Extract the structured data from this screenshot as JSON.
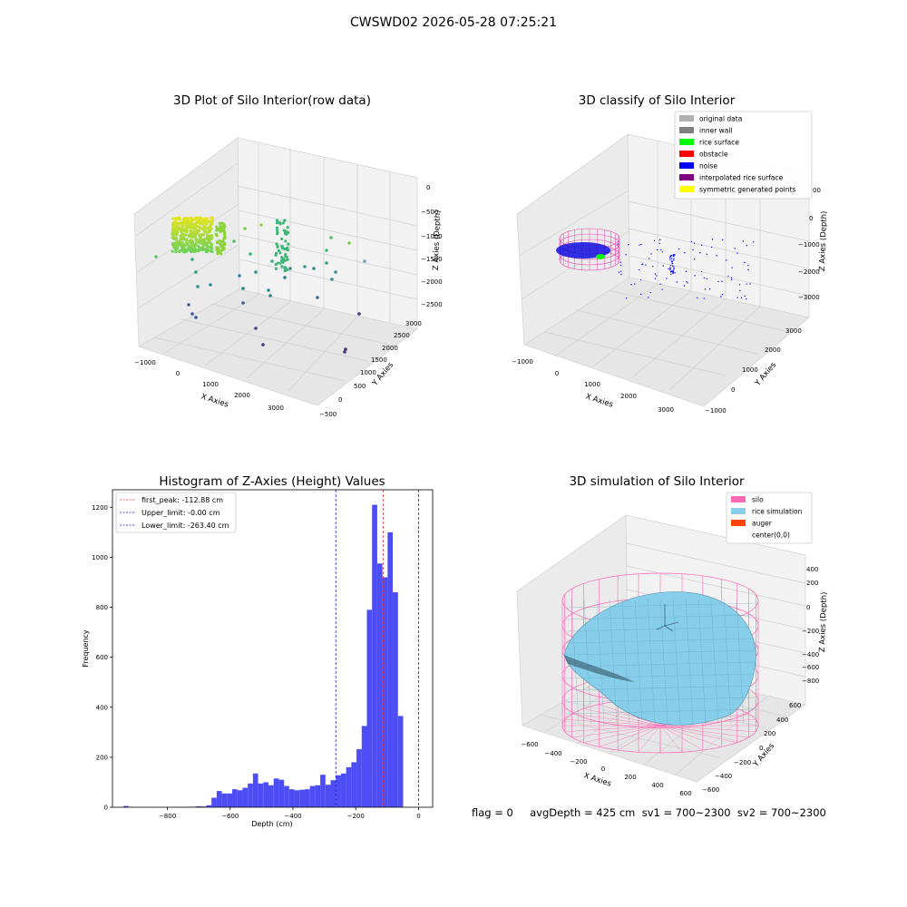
{
  "suptitle": "CWSWD02 2026-05-28 07:25:21",
  "colors": {
    "hist_bar": "#4d4df5",
    "first_peak": "#e03030",
    "limits": "#2020cc",
    "silo": "#ff69b4",
    "rice_simulation": "#87ceeb",
    "auger": "#ff4500",
    "inner_wall": "#808080",
    "rice_surface": "#00ff00",
    "obstacle": "#ff0000",
    "noise": "#0000ff",
    "interpolated": "#800080",
    "symmetric": "#ffff00",
    "original": "#b0b0b0"
  },
  "panel1": {
    "title": "3D Plot of Silo Interior(row data)",
    "xlabel": "X Axies",
    "ylabel": "Y Axies",
    "zlabel": "Z Axies (Depth)",
    "xticks": [
      "−1000",
      "0",
      "1000",
      "2000",
      "3000"
    ],
    "yticks": [
      "−500",
      "0",
      "500",
      "1000",
      "1500",
      "2000",
      "2500",
      "3000"
    ],
    "zticks": [
      "0",
      "−500",
      "−1000",
      "−1500",
      "−2000",
      "−2500"
    ]
  },
  "panel2": {
    "title": "3D classify of Silo Interior",
    "xlabel": "X Axies",
    "ylabel": "Y Axies",
    "zlabel": "Z Axies (Depth)",
    "xticks": [
      "−1000",
      "0",
      "1000",
      "2000",
      "3000"
    ],
    "yticks": [
      "−1000",
      "0",
      "1000",
      "2000",
      "3000"
    ],
    "zticks": [
      "0",
      "−1000",
      "−2000",
      "−3000"
    ],
    "ztick_top_partial": "00",
    "legend": [
      {
        "label": "original data",
        "color": "#b0b0b0"
      },
      {
        "label": "inner wall",
        "color": "#808080"
      },
      {
        "label": "rice surface",
        "color": "#00ff00"
      },
      {
        "label": "obstacle",
        "color": "#ff0000"
      },
      {
        "label": "noise",
        "color": "#0000ff"
      },
      {
        "label": "interpolated rice surface",
        "color": "#800080"
      },
      {
        "label": "symmetric generated points",
        "color": "#ffff00"
      }
    ]
  },
  "panel4": {
    "title": "3D simulation of Silo Interior",
    "xlabel": "X Axies",
    "ylabel": "Y Axies",
    "zlabel": "Z Axies (Depth)",
    "xticks": [
      "−600",
      "−400",
      "−200",
      "0",
      "200",
      "400",
      "600"
    ],
    "yticks": [
      "−600",
      "−400",
      "−200",
      "0",
      "200",
      "400",
      "600"
    ],
    "zticks": [
      "400",
      "200",
      "0",
      "−200",
      "−400",
      "−600",
      "−800"
    ],
    "legend": [
      {
        "label": "silo",
        "color": "#ff69b4"
      },
      {
        "label": "rice simulation",
        "color": "#87ceeb"
      },
      {
        "label": "auger",
        "color": "#ff4500"
      },
      {
        "label": "center(0,0)",
        "color": ""
      }
    ]
  },
  "footer": "flag = 0     avgDepth = 425 cm  sv1 = 700~2300  sv2 = 700~2300",
  "chart_data": {
    "type": "bar",
    "title": "Histogram of Z-Axies (Height) Values",
    "xlabel": "Depth (cm)",
    "ylabel": "Frequency",
    "xlim": [
      -975,
      45
    ],
    "ylim": [
      0,
      1270
    ],
    "xticks": [
      -800,
      -600,
      -400,
      -200,
      0
    ],
    "yticks": [
      0,
      200,
      400,
      600,
      800,
      1000,
      1200
    ],
    "xtick_labels": [
      "−800",
      "−600",
      "−400",
      "−200",
      "0"
    ],
    "ytick_labels": [
      "0",
      "200",
      "400",
      "600",
      "800",
      "1000",
      "1200"
    ],
    "bin_start": -940,
    "bin_width": 16.5,
    "counts": [
      5,
      1,
      0,
      0,
      0,
      0,
      0,
      0,
      0,
      0,
      1,
      1,
      1,
      2,
      4,
      3,
      8,
      38,
      65,
      55,
      55,
      72,
      68,
      78,
      95,
      135,
      95,
      100,
      88,
      115,
      110,
      85,
      72,
      68,
      70,
      72,
      85,
      88,
      130,
      90,
      108,
      128,
      135,
      160,
      180,
      232,
      325,
      790,
      1210,
      975,
      920,
      1100,
      860,
      365
    ],
    "vlines": [
      {
        "label": "first_peak: -112.88 cm",
        "x": -112.88,
        "color": "#e03030"
      },
      {
        "label": "Upper_limit: -0.00 cm",
        "x": -0.0,
        "color": "#2020cc"
      },
      {
        "label": "Lower_limit: -263.40 cm",
        "x": -263.4,
        "color": "#2020cc"
      }
    ],
    "legend_position": "upper left"
  }
}
